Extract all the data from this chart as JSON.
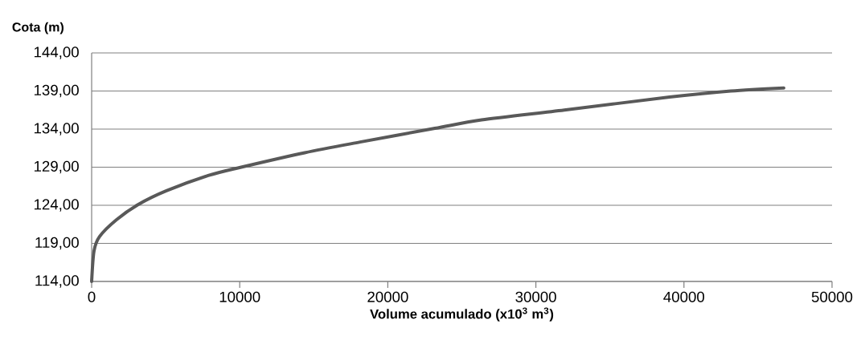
{
  "chart_data": {
    "type": "line",
    "xlabel": "Volume acumulado (x10$^{3}$ m$^{3}$)",
    "ylabel": "Cota (m)",
    "x": [
      0,
      160,
      540,
      1680,
      3150,
      5050,
      7870,
      10100,
      14390,
      18130,
      23180,
      26330,
      31920,
      39030,
      43160,
      46740
    ],
    "series": [
      {
        "color": "#595959",
        "values": [
          114.0,
          118.0,
          119.9,
          122.1,
          124.1,
          125.9,
          127.9,
          129.0,
          130.9,
          132.3,
          134.1,
          135.2,
          136.5,
          138.2,
          139.0,
          139.4
        ]
      }
    ],
    "xlim": [
      0,
      50000
    ],
    "ylim": [
      114,
      144
    ],
    "xticks": [
      0,
      10000,
      20000,
      30000,
      40000,
      50000
    ],
    "yticks": [
      {
        "value": 114,
        "label": "114,00"
      },
      {
        "value": 119,
        "label": "119,00"
      },
      {
        "value": 124,
        "label": "124,00"
      },
      {
        "value": 129,
        "label": "129,00"
      },
      {
        "value": 134,
        "label": "134,00"
      },
      {
        "value": 139,
        "label": "139,00"
      },
      {
        "value": 144,
        "label": "144,00"
      }
    ],
    "grid": "y",
    "marker": "none",
    "line_style": "solid"
  }
}
